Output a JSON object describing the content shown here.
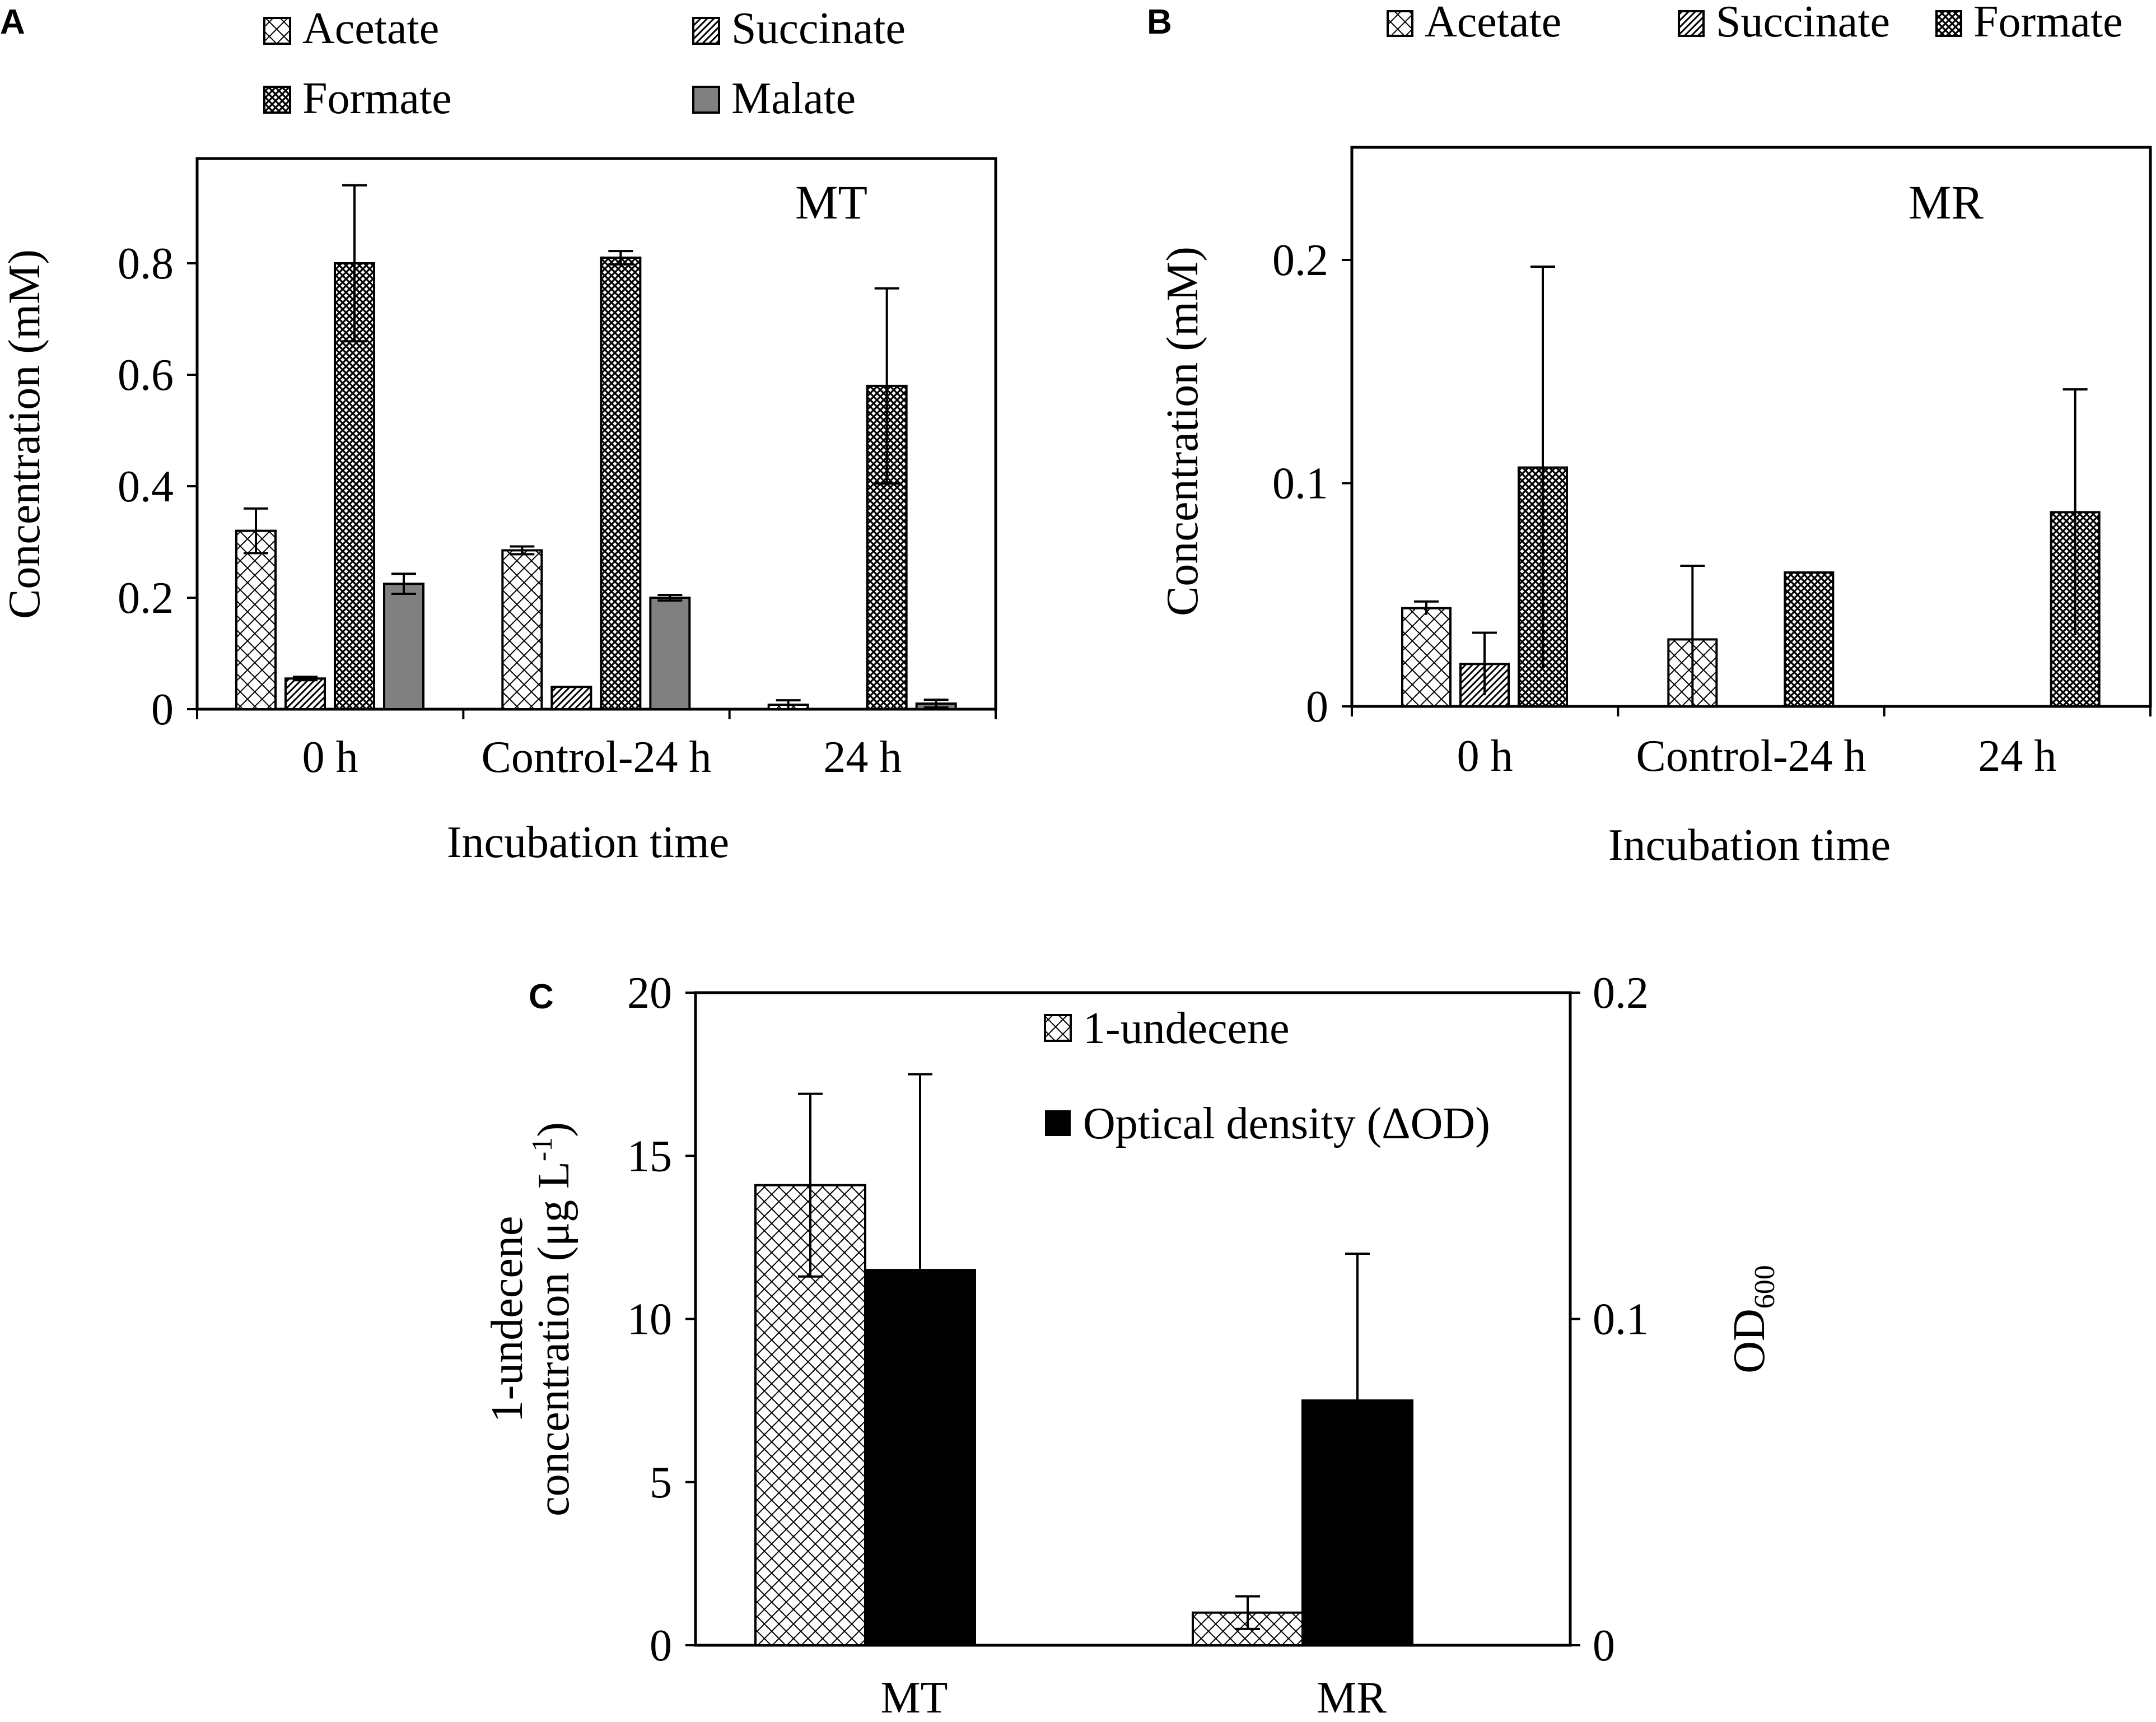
{
  "chart_data": [
    {
      "type": "bar",
      "panel": "A",
      "annotation": "MT",
      "xlabel": "Incubation time",
      "ylabel": "Concentration (mM)",
      "ylim": [
        0,
        1.0
      ],
      "yticks": [
        "0",
        "0.2",
        "0.4",
        "0.6",
        "0.8"
      ],
      "categories": [
        "0 h",
        "Control-24 h",
        "24 h"
      ],
      "series": [
        {
          "name": "Acetate",
          "values": [
            0.32,
            0.285,
            0.008
          ],
          "errors": [
            0.04,
            0.007,
            0.008
          ],
          "pattern": "diamond"
        },
        {
          "name": "Succinate",
          "values": [
            0.055,
            0.04,
            0.0
          ],
          "errors": [
            0.003,
            0.0,
            0.0
          ],
          "pattern": "diag"
        },
        {
          "name": "Formate",
          "values": [
            0.8,
            0.81,
            0.58
          ],
          "errors": [
            0.14,
            0.012,
            0.175
          ],
          "pattern": "dense"
        },
        {
          "name": "Malate",
          "values": [
            0.225,
            0.2,
            0.01
          ],
          "errors": [
            0.018,
            0.005,
            0.007
          ],
          "pattern": "gray"
        }
      ]
    },
    {
      "type": "bar",
      "panel": "B",
      "annotation": "MR",
      "xlabel": "Incubation time",
      "ylabel": "Concentration (mM)",
      "ylim": [
        0,
        0.25
      ],
      "yticks": [
        "0",
        "0.1",
        "0.2"
      ],
      "categories": [
        "0 h",
        "Control-24 h",
        "24 h"
      ],
      "series": [
        {
          "name": "Acetate",
          "values": [
            0.044,
            0.03,
            0.0
          ],
          "errors": [
            0.003,
            0.033,
            0.0
          ],
          "pattern": "diamond"
        },
        {
          "name": "Succinate",
          "values": [
            0.019,
            0.0,
            0.0
          ],
          "errors": [
            0.014,
            0.0,
            0.0
          ],
          "pattern": "diag"
        },
        {
          "name": "Formate",
          "values": [
            0.107,
            0.06,
            0.087
          ],
          "errors": [
            0.09,
            0.0,
            0.055
          ],
          "pattern": "dense"
        }
      ]
    },
    {
      "type": "bar",
      "panel": "C",
      "categories": [
        "MT",
        "MR"
      ],
      "ylabel_line1": "1-undecene",
      "ylabel_line2": "concentration (μg L",
      "ylabel_sup": "-1",
      "ylabel_close": ")",
      "y2label": "OD",
      "y2label_sub": "600",
      "ylim": [
        0,
        20
      ],
      "yticks": [
        "0",
        "5",
        "10",
        "15",
        "20"
      ],
      "y2lim": [
        0,
        0.2
      ],
      "y2ticks": [
        "0",
        "0.1",
        "0.2"
      ],
      "series": [
        {
          "name": "1-undecene",
          "axis": "left",
          "values": [
            14.1,
            1.0
          ],
          "errors": [
            2.8,
            0.5
          ],
          "pattern": "diamond"
        },
        {
          "name": "Optical density (ΔOD)",
          "axis": "right",
          "values": [
            0.115,
            0.075
          ],
          "errors": [
            0.06,
            0.045
          ],
          "pattern": "black"
        }
      ]
    }
  ]
}
